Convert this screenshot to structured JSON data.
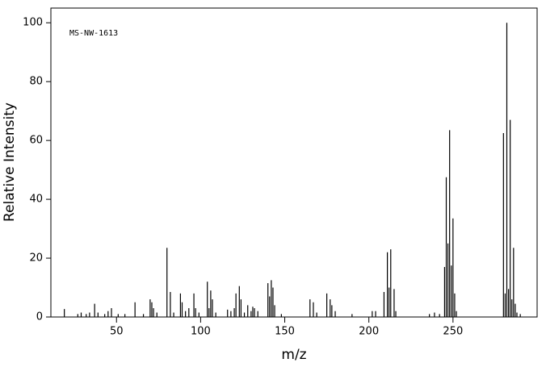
{
  "chart_data": {
    "type": "bar",
    "annotation": "MS-NW-1613",
    "xlabel": "m/z",
    "ylabel": "Relative Intensity",
    "x": [
      19,
      27,
      29,
      32,
      34,
      37,
      39,
      43,
      45,
      47,
      51,
      55,
      61,
      66,
      70,
      71,
      72,
      74,
      80,
      82,
      84,
      88,
      89,
      91,
      93,
      96,
      97,
      99,
      104,
      105,
      106,
      107,
      109,
      116,
      118,
      120,
      121,
      123,
      124,
      126,
      128,
      130,
      131,
      132,
      134,
      140,
      141,
      142,
      143,
      144,
      148,
      165,
      167,
      169,
      175,
      177,
      178,
      180,
      190,
      202,
      204,
      209,
      211,
      212,
      213,
      215,
      216,
      236,
      239,
      242,
      245,
      246,
      247,
      248,
      249,
      250,
      251,
      252,
      280,
      281,
      282,
      283,
      284,
      285,
      286,
      287,
      288,
      290
    ],
    "series": [
      {
        "color": "#000000",
        "values": [
          2.7,
          1,
          1.5,
          1,
          1.5,
          4.5,
          1.5,
          1,
          2,
          3,
          1,
          1,
          5,
          1,
          6,
          5,
          3,
          1.5,
          23.5,
          8.5,
          1.5,
          8,
          5,
          2,
          3,
          8,
          3,
          1.5,
          12,
          3,
          9,
          6,
          1.5,
          2.5,
          2,
          3,
          8,
          10.5,
          6,
          1.5,
          4,
          2,
          3.5,
          3,
          2,
          11.5,
          7,
          12.5,
          10,
          4,
          1,
          6,
          5,
          1.5,
          8,
          6,
          4,
          2,
          1,
          2,
          2,
          8.5,
          22,
          10,
          23,
          9.5,
          2,
          1,
          1.5,
          1,
          17,
          47.5,
          25,
          63.5,
          17.5,
          33.5,
          8,
          2,
          62.5,
          8,
          100,
          9.5,
          67,
          6,
          23.5,
          4.5,
          1.5,
          1
        ]
      }
    ],
    "xlim": [
      11,
      300
    ],
    "ylim": [
      0,
      105
    ],
    "xticks": [
      50,
      100,
      150,
      200,
      250
    ],
    "yticks": [
      0,
      20,
      40,
      60,
      80,
      100
    ]
  }
}
